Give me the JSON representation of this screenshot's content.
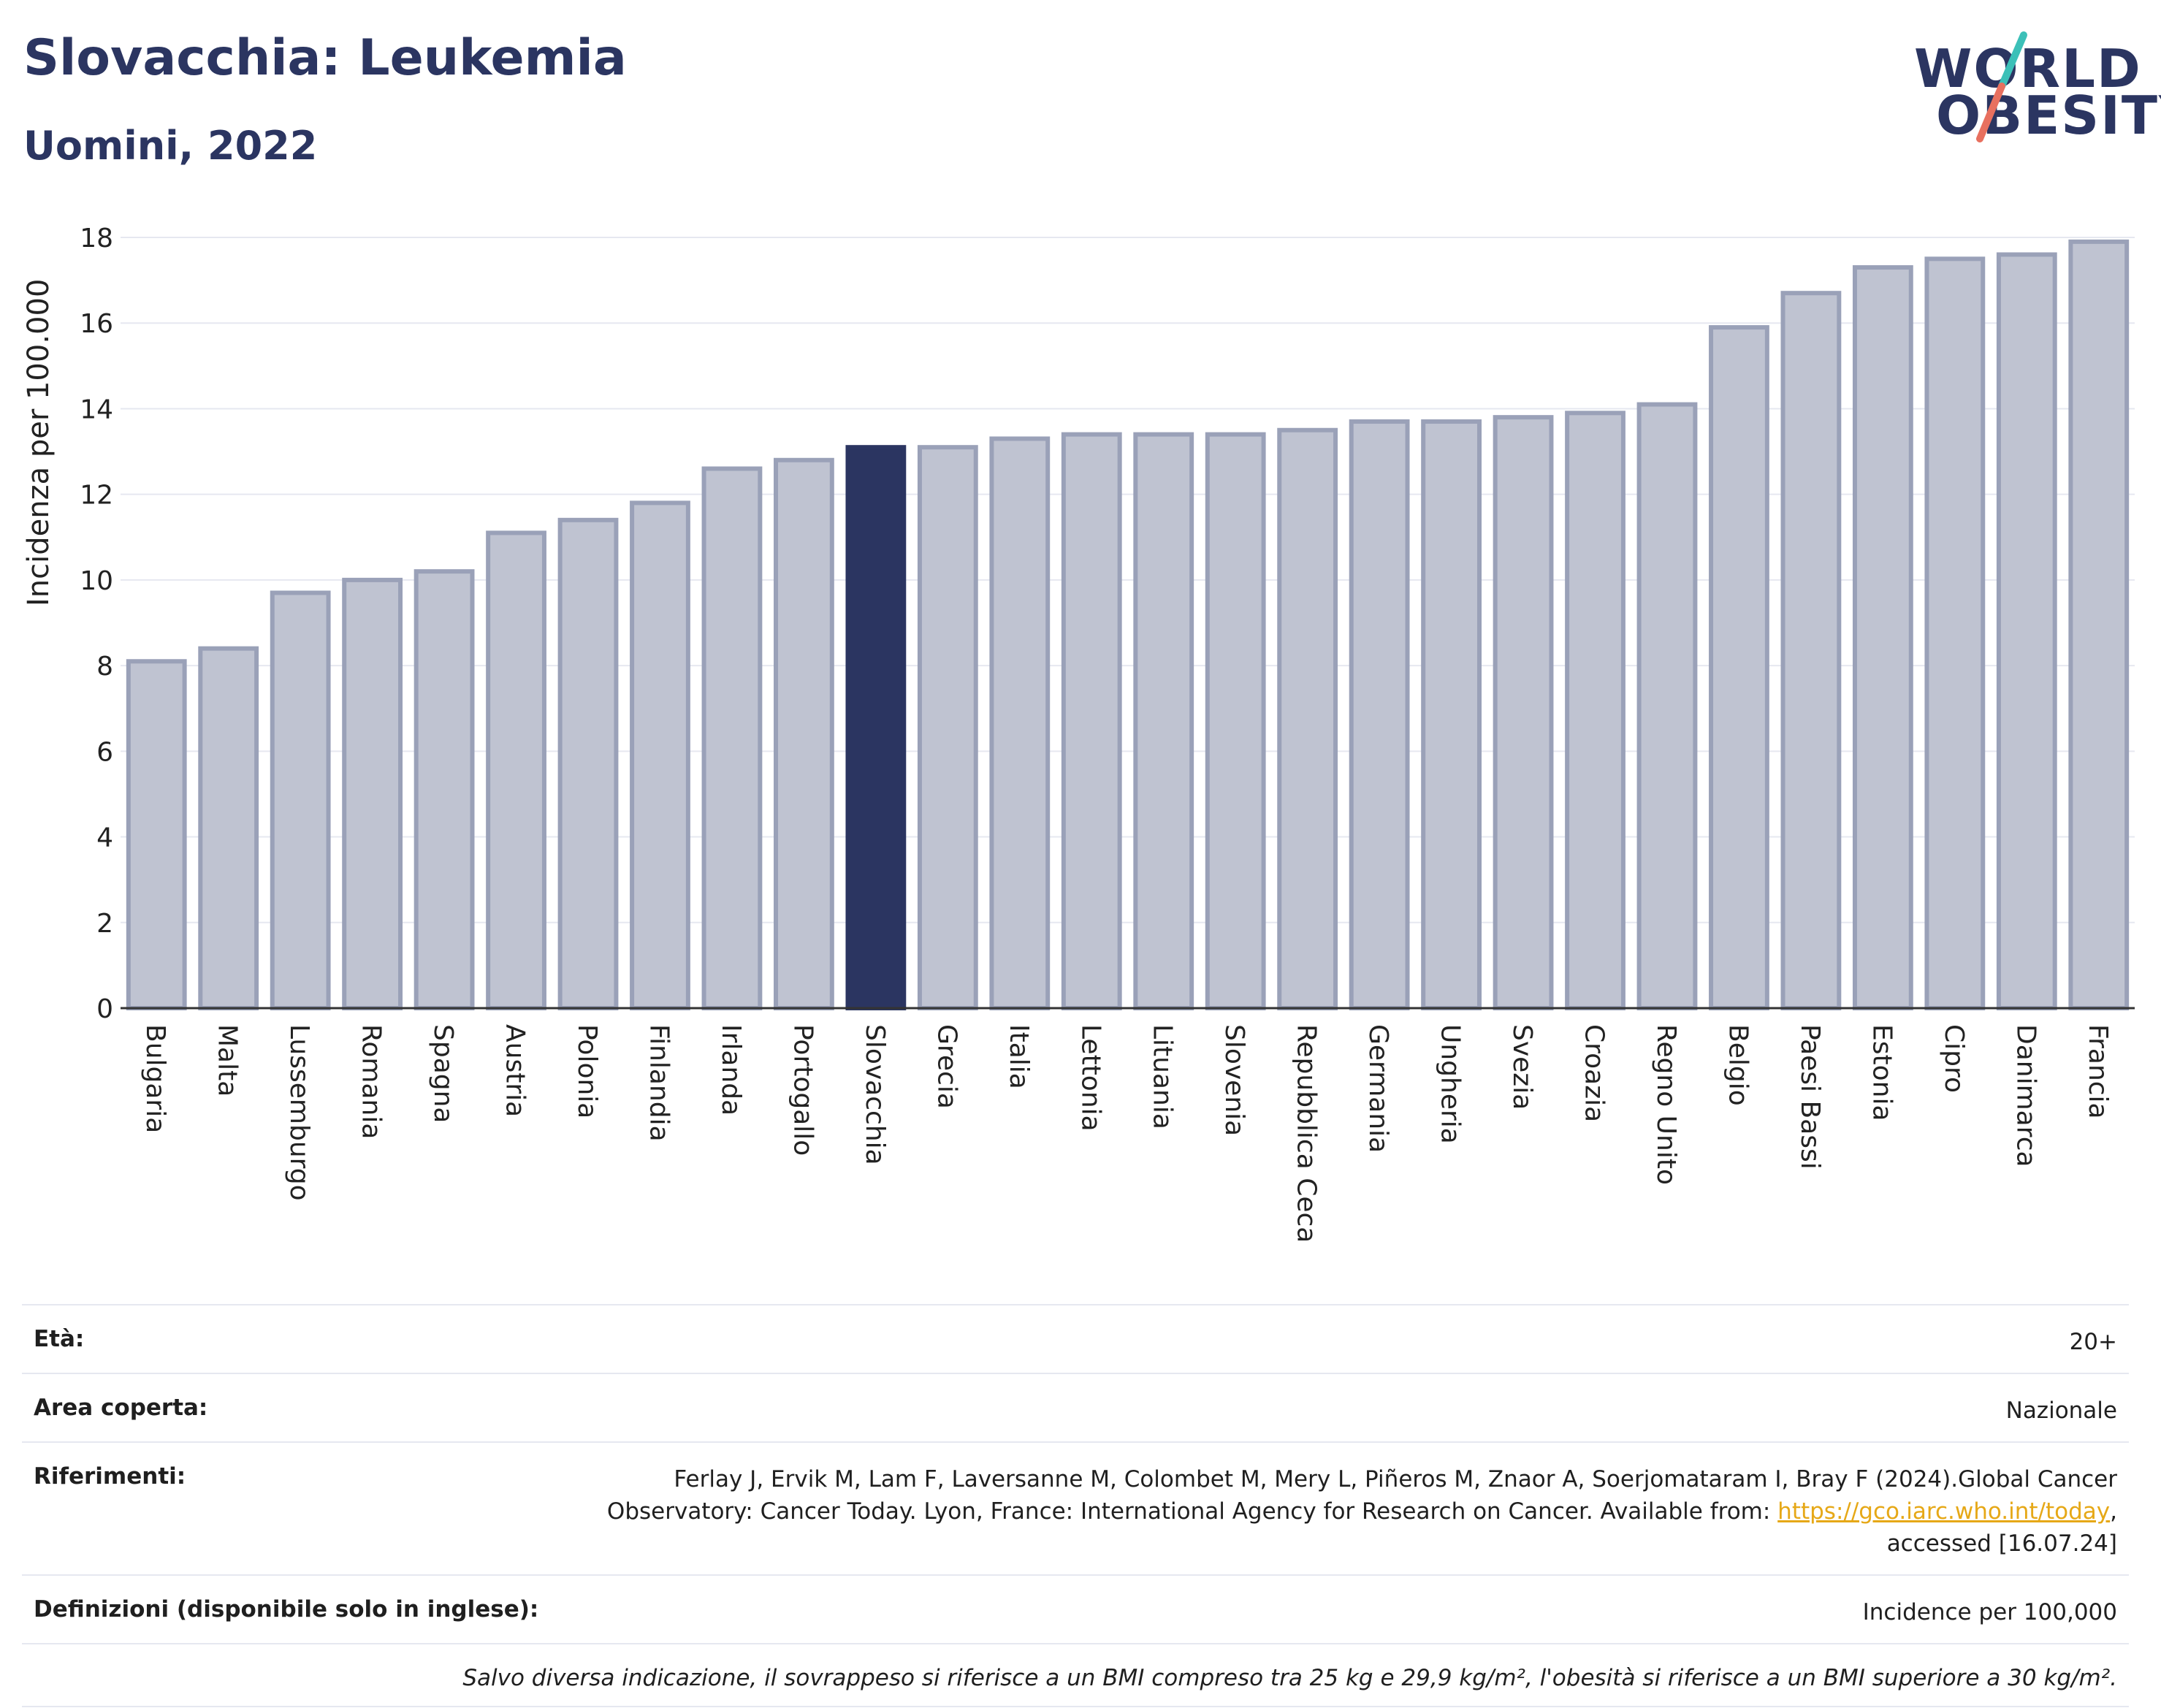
{
  "header": {
    "title": "Slovacchia: Leukemia",
    "subtitle": "Uomini, 2022",
    "logo_line1": "WORLD",
    "logo_line2": "OBESITY"
  },
  "colors": {
    "highlight": "#2b3561",
    "bar_fill": "#bfc3d1",
    "bar_stroke": "#9aa1b8",
    "grid": "#e6e8f0",
    "logo_teal": "#3cc0b8",
    "logo_coral": "#e8705f"
  },
  "chart_data": {
    "type": "bar",
    "title": "Slovacchia: Leukemia",
    "subtitle": "Uomini, 2022",
    "ylabel": "Incidenza per 100.000",
    "xlabel": "",
    "ylim": [
      0,
      18
    ],
    "yticks": [
      0,
      2,
      4,
      6,
      8,
      10,
      12,
      14,
      16,
      18
    ],
    "grid": true,
    "highlight": "Slovacchia",
    "categories": [
      "Bulgaria",
      "Malta",
      "Lussemburgo",
      "Romania",
      "Spagna",
      "Austria",
      "Polonia",
      "Finlandia",
      "Irlanda",
      "Portogallo",
      "Slovacchia",
      "Grecia",
      "Italia",
      "Lettonia",
      "Lituania",
      "Slovenia",
      "Repubblica Ceca",
      "Germania",
      "Ungheria",
      "Svezia",
      "Croazia",
      "Regno Unito",
      "Belgio",
      "Paesi Bassi",
      "Estonia",
      "Cipro",
      "Danimarca",
      "Francia"
    ],
    "values": [
      8.1,
      8.4,
      9.7,
      10.0,
      10.2,
      11.1,
      11.4,
      11.8,
      12.6,
      12.8,
      13.1,
      13.1,
      13.3,
      13.4,
      13.4,
      13.4,
      13.5,
      13.7,
      13.7,
      13.8,
      13.9,
      14.1,
      15.9,
      16.7,
      17.3,
      17.5,
      17.6,
      17.9
    ]
  },
  "meta": {
    "age_label": "Età:",
    "age_value": "20+",
    "area_label": "Area coperta:",
    "area_value": "Nazionale",
    "refs_label": "Riferimenti:",
    "refs_text": "Ferlay J, Ervik M, Lam F, Laversanne M, Colombet M, Mery L, Piñeros M, Znaor A, Soerjomataram I, Bray F (2024).Global Cancer Observatory: Cancer Today. Lyon, France: International Agency for Research on Cancer. Available from: ",
    "refs_link": "https://gco.iarc.who.int/today",
    "refs_tail": ", accessed [16.07.24]",
    "defs_label": "Definizioni (disponibile solo in inglese):",
    "defs_value": "Incidence per 100,000",
    "note": "Salvo diversa indicazione, il sovrappeso si riferisce a un BMI compreso tra 25 kg e 29,9 kg/m², l'obesità si riferisce a un BMI superiore a 30 kg/m²."
  }
}
